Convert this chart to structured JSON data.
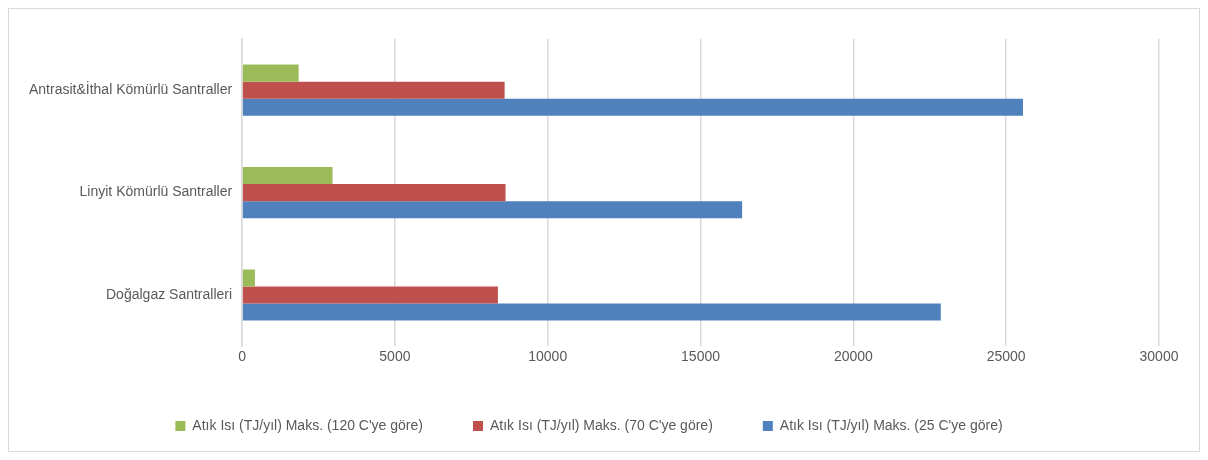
{
  "chart_data": {
    "type": "bar",
    "orientation": "horizontal",
    "categories": [
      "Antrasit&İthal Kömürlü Santraller",
      "Linyit Kömürlü Santraller",
      "Doğalgaz Santralleri"
    ],
    "series": [
      {
        "name": "Atık Isı (TJ/yıl) Maks. (120 C'ye göre)",
        "color": "#9bbb59",
        "values": [
          1850,
          2960,
          420
        ]
      },
      {
        "name": "Atık Isı (TJ/yıl) Maks. (70 C'ye göre)",
        "color": "#c0504d",
        "values": [
          8590,
          8620,
          8370
        ]
      },
      {
        "name": "Atık Isı (TJ/yıl) Maks. (25 C'ye göre)",
        "color": "#4f81bd",
        "values": [
          25550,
          16360,
          22860
        ]
      }
    ],
    "xlim": [
      0,
      30000
    ],
    "xticks": [
      0,
      5000,
      10000,
      15000,
      20000,
      25000,
      30000
    ],
    "grid": "x",
    "legend": "bottom"
  }
}
